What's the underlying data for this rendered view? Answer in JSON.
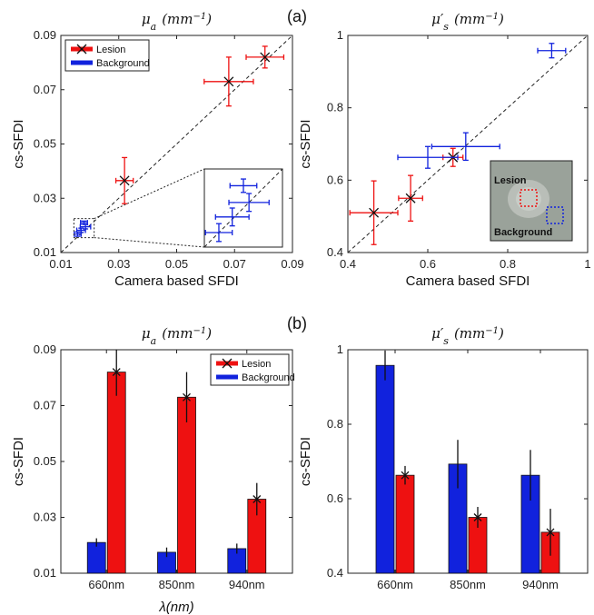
{
  "panel_labels": {
    "a": "(a)",
    "b": "(b)"
  },
  "colors": {
    "lesion": "#ee1111",
    "background": "#1122dd"
  },
  "chart_data": [
    {
      "id": "a-left",
      "type": "scatter",
      "title": "μ_a (mm^-1)",
      "title_main": "μ",
      "title_sub": "a",
      "title_unit": "(mm",
      "title_exp": "−1",
      "title_close": ")",
      "xlabel": "Camera based SFDI",
      "ylabel": "cs-SFDI",
      "xlim": [
        0.01,
        0.09
      ],
      "ylim": [
        0.01,
        0.09
      ],
      "xticks": [
        "0.01",
        "0.03",
        "0.05",
        "0.07",
        "0.09"
      ],
      "yticks": [
        "0.01",
        "0.03",
        "0.05",
        "0.07",
        "0.09"
      ],
      "identity_line": true,
      "legend": {
        "placement": "top-left",
        "entries": [
          "Lesion",
          "Background"
        ]
      },
      "series": [
        {
          "name": "Lesion",
          "points": [
            {
              "x": 0.032,
              "y": 0.0365,
              "xerr": 0.003,
              "yerr": 0.0085
            },
            {
              "x": 0.068,
              "y": 0.073,
              "xerr": 0.0085,
              "yerr": 0.009
            },
            {
              "x": 0.0805,
              "y": 0.082,
              "xerr": 0.0065,
              "yerr": 0.004
            }
          ]
        },
        {
          "name": "Background",
          "points": [
            {
              "x": 0.0158,
              "y": 0.0168,
              "xerr": 0.0012,
              "yerr": 0.0008
            },
            {
              "x": 0.017,
              "y": 0.0182,
              "xerr": 0.0015,
              "yerr": 0.0008
            },
            {
              "x": 0.0185,
              "y": 0.0195,
              "xerr": 0.0018,
              "yerr": 0.0008
            },
            {
              "x": 0.018,
              "y": 0.021,
              "xerr": 0.0012,
              "yerr": 0.0006
            }
          ]
        }
      ]
    },
    {
      "id": "a-right",
      "type": "scatter",
      "title": "μ'_s (mm^-1)",
      "title_main": "μ′",
      "title_sub": "s",
      "title_unit": "(mm",
      "title_exp": "−1",
      "title_close": ")",
      "xlabel": "Camera based SFDI",
      "ylabel": "cs-SFDI",
      "xlim": [
        0.4,
        1.0
      ],
      "ylim": [
        0.4,
        1.0
      ],
      "xticks": [
        "0.4",
        "0.6",
        "0.8",
        "1"
      ],
      "yticks": [
        "0.4",
        "0.6",
        "0.8",
        "1"
      ],
      "identity_line": true,
      "inset_labels": {
        "lesion": "Lesion",
        "background": "Background"
      },
      "series": [
        {
          "name": "Lesion",
          "points": [
            {
              "x": 0.465,
              "y": 0.51,
              "xerr": 0.06,
              "yerr": 0.088
            },
            {
              "x": 0.557,
              "y": 0.55,
              "xerr": 0.03,
              "yerr": 0.063
            },
            {
              "x": 0.663,
              "y": 0.663,
              "xerr": 0.025,
              "yerr": 0.025
            }
          ]
        },
        {
          "name": "Background",
          "points": [
            {
              "x": 0.6,
              "y": 0.663,
              "xerr": 0.075,
              "yerr": 0.03
            },
            {
              "x": 0.695,
              "y": 0.693,
              "xerr": 0.085,
              "yerr": 0.038
            },
            {
              "x": 0.91,
              "y": 0.958,
              "xerr": 0.035,
              "yerr": 0.02
            }
          ]
        }
      ]
    },
    {
      "id": "b-left",
      "type": "bar",
      "title": "μ_a (mm^-1)",
      "title_main": "μ",
      "title_sub": "a",
      "title_unit": "(mm",
      "title_exp": "−1",
      "title_close": ")",
      "xlabel": "λ(nm)",
      "ylabel": "cs-SFDI",
      "ylim": [
        0.01,
        0.09
      ],
      "yticks": [
        "0.01",
        "0.03",
        "0.05",
        "0.07",
        "0.09"
      ],
      "categories": [
        "660nm",
        "850nm",
        "940nm"
      ],
      "legend": {
        "placement": "top-right",
        "entries": [
          "Lesion",
          "Background"
        ]
      },
      "series": [
        {
          "name": "Background",
          "values": [
            0.021,
            0.0175,
            0.0188
          ],
          "errors": [
            0.0015,
            0.0017,
            0.0018
          ]
        },
        {
          "name": "Lesion",
          "values": [
            0.082,
            0.073,
            0.0365
          ],
          "errors": [
            0.0085,
            0.009,
            0.0058
          ]
        }
      ]
    },
    {
      "id": "b-right",
      "type": "bar",
      "title": "μ'_s (mm^-1)",
      "title_main": "μ′",
      "title_sub": "s",
      "title_unit": "(mm",
      "title_exp": "−1",
      "title_close": ")",
      "xlabel": "",
      "ylabel": "cs-SFDI",
      "ylim": [
        0.4,
        1.0
      ],
      "yticks": [
        "0.4",
        "0.6",
        "0.8",
        "1"
      ],
      "categories": [
        "660nm",
        "850nm",
        "940nm"
      ],
      "series": [
        {
          "name": "Background",
          "values": [
            0.958,
            0.693,
            0.663
          ],
          "errors": [
            0.04,
            0.065,
            0.068
          ]
        },
        {
          "name": "Lesion",
          "values": [
            0.663,
            0.55,
            0.51
          ],
          "errors": [
            0.025,
            0.028,
            0.063
          ]
        }
      ]
    }
  ]
}
